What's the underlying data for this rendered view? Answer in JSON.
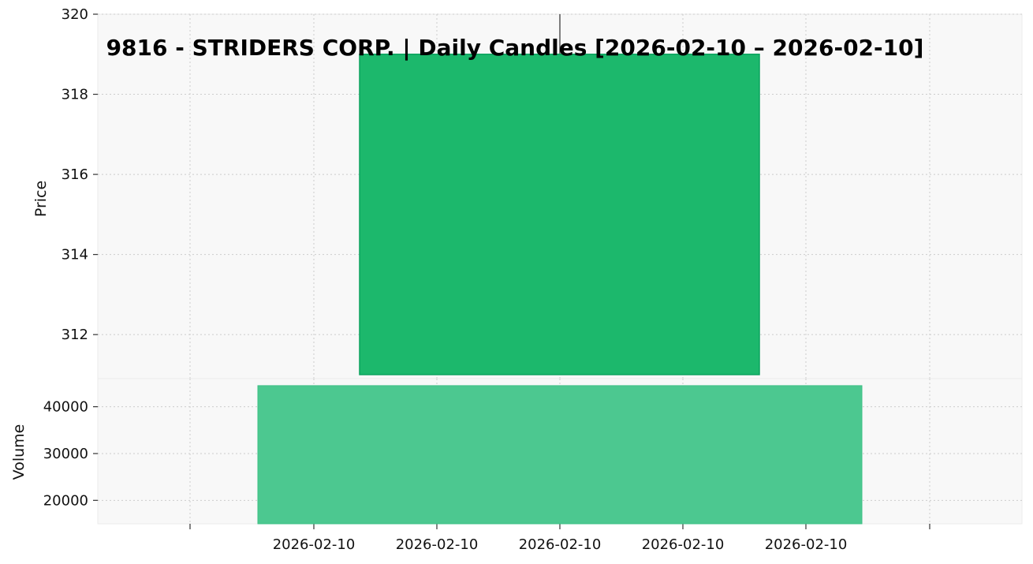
{
  "chart_data": {
    "type": "candlestick",
    "title": "9816 - STRIDERS CORP. | Daily Candles [2026-02-10 – 2026-02-10]",
    "xlabel": "",
    "x_tick_labels": [
      "2026-02-10",
      "2026-02-10",
      "2026-02-10",
      "2026-02-10",
      "2026-02-10"
    ],
    "candles": [
      {
        "date": "2026-02-10",
        "open": 311.0,
        "high": 320.0,
        "low": 311.0,
        "close": 319.0
      }
    ],
    "price_panel": {
      "ylabel": "Price",
      "ylim": [
        310.9,
        320.0
      ],
      "yticks": [
        312,
        314,
        316,
        318,
        320
      ],
      "ytick_labels": [
        "312",
        "314",
        "316",
        "318",
        "320"
      ]
    },
    "volume_panel": {
      "ylabel": "Volume",
      "ylim": [
        15000,
        46000
      ],
      "yticks": [
        20000,
        30000,
        40000
      ],
      "ytick_labels": [
        "20000",
        "30000",
        "40000"
      ],
      "values": [
        44500
      ]
    },
    "grid": true,
    "colors": {
      "up_candle": "#1cb86c",
      "candle_edge": "#0aa35e",
      "wick": "#555555",
      "volume_bar": "#4cc890",
      "panel_background": "#f8f8f8",
      "grid": "#cccccc"
    }
  }
}
